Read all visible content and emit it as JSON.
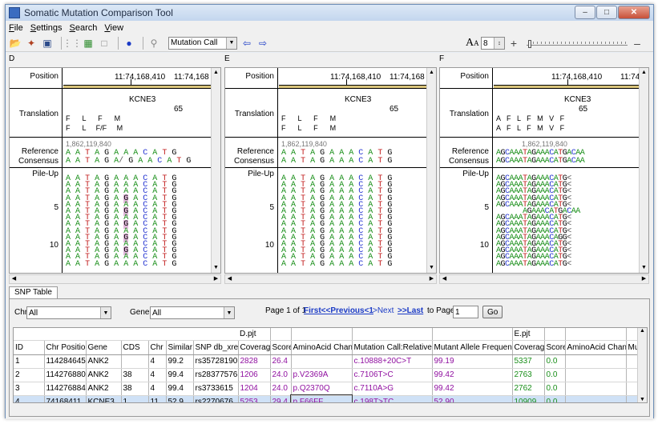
{
  "window": {
    "title": "Somatic Mutation Comparison Tool"
  },
  "menu": [
    "File",
    "Settings",
    "Search",
    "View"
  ],
  "menu_underline": [
    "F",
    "S",
    "S",
    "V"
  ],
  "toolbar": {
    "mode_select": "Mutation Call",
    "font_size": "8",
    "font_icon": "A"
  },
  "panels": [
    {
      "label": "D",
      "position_label": "Position",
      "positions": [
        "11:74,168,410",
        "11:74,168"
      ],
      "translation_label": "Translation",
      "gene": "KCNE3",
      "aa_num": "65",
      "aa_row1": "F      L      F      M",
      "aa_row2": "F      L     F/F     M",
      "ref_coord": "1,862,119,840",
      "reference_label": "Reference",
      "consensus_label": "Consensus",
      "reference_seq": "A A T A G A A A C A T G",
      "consensus_seq": "A A T A G A/ G A A C A T G",
      "pileup_label": "Pile-Up",
      "rows": [
        "5",
        "10"
      ]
    },
    {
      "label": "E",
      "position_label": "Position",
      "positions": [
        "11:74,168,410",
        "11:74,168"
      ],
      "translation_label": "Translation",
      "gene": "KCNE3",
      "aa_num": "65",
      "aa_row1": "F      L      F      M",
      "aa_row2": "F      L      F      M",
      "ref_coord": "1,862,119,840",
      "reference_label": "Reference",
      "consensus_label": "Consensus",
      "reference_seq": "A A T A G A A A C A T G",
      "consensus_seq": "A A T A G A A A C A T G",
      "pileup_label": "Pile-Up",
      "rows": [
        "5",
        "10"
      ]
    },
    {
      "label": "F",
      "position_label": "Position",
      "positions": [
        "11:74,168,410",
        "11:74"
      ],
      "translation_label": "Translation",
      "gene": "KCNE3",
      "aa_num": "65",
      "aa_row1": "A   F   L   F   M   V   F",
      "aa_row2": "A   F   L   F   M   V   F",
      "ref_coord": "1,862,119,840",
      "reference_label": "Reference",
      "consensus_label": "Consensus",
      "reference_seq": "AGCAAATAGAAACATGACAA",
      "consensus_seq": "AGCAAATAGAAACATGACAA",
      "pileup_label": "Pile-Up",
      "rows": [
        "5",
        "10"
      ]
    }
  ],
  "snp": {
    "tab": "SNP Table",
    "chr_label": "Chr",
    "chr_value": "All",
    "gene_label": "Gene",
    "gene_value": "All",
    "page_text": "Page 1 of 1",
    "first_prev": "First<<Previous<1",
    "next": ">Next",
    "last": ">>Last",
    "to_page": "to Page",
    "page_input": "1",
    "go": "Go",
    "group_d": "D.pjt",
    "group_e": "E.pjt",
    "columns": [
      "ID",
      "Chr Position",
      "Gene",
      "CDS",
      "Chr",
      "Similar",
      "SNP db_xref",
      "Coverage",
      "Score",
      "AminoAcid Change",
      "Mutation Call:Relative To G",
      "Mutant Allele Frequency",
      "Coverage",
      "Score",
      "AminoAcid Change",
      "Mu"
    ],
    "rows": [
      [
        "1",
        "114284645",
        "ANK2",
        "",
        "4",
        "99.2",
        "rs35728190",
        "2828",
        "26.4",
        "",
        "c.10888+20C>T",
        "99.19",
        "5337",
        "0.0",
        "",
        ""
      ],
      [
        "2",
        "114276880",
        "ANK2",
        "38",
        "4",
        "99.4",
        "rs28377576",
        "1206",
        "24.0",
        "p.V2369A",
        "c.7106T>C",
        "99.42",
        "2763",
        "0.0",
        "",
        ""
      ],
      [
        "3",
        "114276884",
        "ANK2",
        "38",
        "4",
        "99.4",
        "rs3733615",
        "1204",
        "24.0",
        "p.Q2370Q",
        "c.7110A>G",
        "99.42",
        "2762",
        "0.0",
        "",
        ""
      ],
      [
        "4",
        "74168411",
        "KCNE3",
        "1",
        "11",
        "52.9",
        "rs2270676",
        "5253",
        "29.4",
        "p.F66FF",
        "c.198T>TC",
        "52.90",
        "10909",
        "0.0",
        "",
        ""
      ]
    ]
  }
}
